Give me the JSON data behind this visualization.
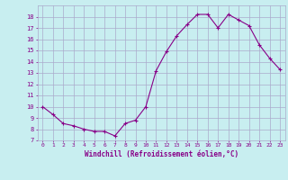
{
  "x": [
    0,
    1,
    2,
    3,
    4,
    5,
    6,
    7,
    8,
    9,
    10,
    11,
    12,
    13,
    14,
    15,
    16,
    17,
    18,
    19,
    20,
    21,
    22,
    23
  ],
  "y": [
    10,
    9.3,
    8.5,
    8.3,
    8.0,
    7.8,
    7.8,
    7.4,
    8.5,
    8.8,
    10.0,
    13.2,
    14.9,
    16.3,
    17.3,
    18.2,
    18.2,
    17.0,
    18.2,
    17.7,
    17.2,
    15.5,
    14.3,
    13.3
  ],
  "line_color": "#880088",
  "marker": "+",
  "marker_size": 3,
  "bg_color": "#c8eef0",
  "grid_color": "#aaaacc",
  "xlabel": "Windchill (Refroidissement éolien,°C)",
  "xlabel_color": "#880088",
  "tick_color": "#880088",
  "ylim": [
    7,
    19
  ],
  "xlim": [
    -0.5,
    23.5
  ],
  "yticks": [
    7,
    8,
    9,
    10,
    11,
    12,
    13,
    14,
    15,
    16,
    17,
    18
  ],
  "xticks": [
    0,
    1,
    2,
    3,
    4,
    5,
    6,
    7,
    8,
    9,
    10,
    11,
    12,
    13,
    14,
    15,
    16,
    17,
    18,
    19,
    20,
    21,
    22,
    23
  ]
}
